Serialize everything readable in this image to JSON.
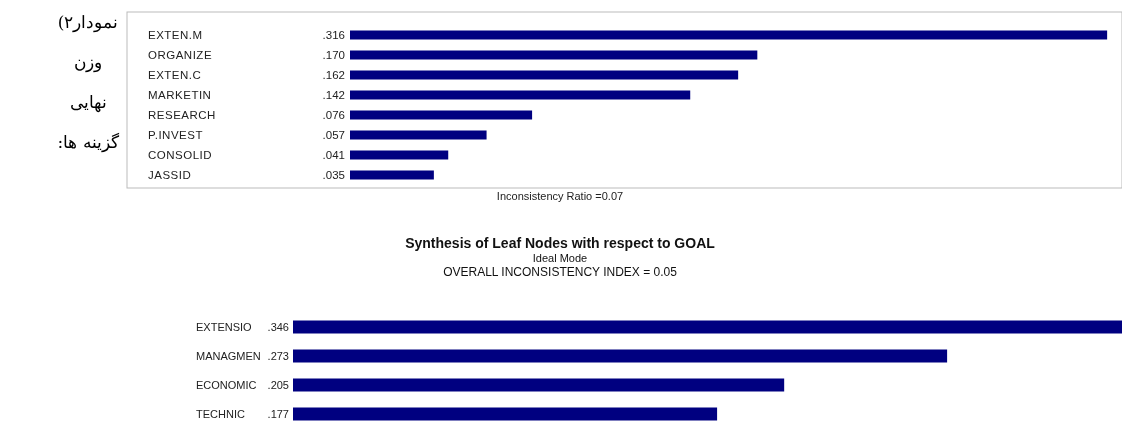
{
  "chart_data": [
    {
      "type": "bar",
      "orientation": "horizontal",
      "categories": [
        "EXTEN.M",
        "ORGANIZE",
        "EXTEN.C",
        "MARKETIN",
        "RESEARCH",
        "P.INVEST",
        "CONSOLID",
        "JASSID"
      ],
      "values": [
        0.316,
        0.17,
        0.162,
        0.142,
        0.076,
        0.057,
        0.041,
        0.035
      ],
      "value_labels": [
        ".316",
        ".170",
        ".162",
        ".142",
        ".076",
        ".057",
        ".041",
        ".035"
      ],
      "color": "#000080",
      "annotations": [
        "Inconsistency Ratio =0.07",
        "نمودار۲)\nوزن\nنهایی\nگزینه ها:"
      ]
    },
    {
      "type": "bar",
      "orientation": "horizontal",
      "title": "Synthesis of Leaf Nodes with respect to GOAL",
      "subtitle": "Ideal Mode",
      "categories": [
        "EXTENSIO",
        "MANAGMEN",
        "ECONOMIC",
        "TECHNIC"
      ],
      "values": [
        0.346,
        0.273,
        0.205,
        0.177
      ],
      "value_labels": [
        ".346",
        ".273",
        ".205",
        ".177"
      ],
      "color": "#000080",
      "annotations": [
        "OVERALL INCONSISTENCY INDEX =  0.05"
      ]
    }
  ]
}
